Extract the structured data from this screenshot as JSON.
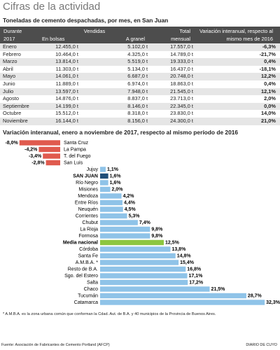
{
  "header": {
    "title": "Cifras de la actividad"
  },
  "table": {
    "title": "Toneladas de cemento despachadas, por mes, en San Juan",
    "columns": [
      "Durante 2017",
      "Vendidas",
      "Total mensual",
      "Variación interanual, respecto al mismo mes de 2016"
    ],
    "subcolumns": [
      "En bolsas",
      "A granel"
    ],
    "rows": [
      [
        "Enero",
        "12.455,0 t",
        "5.102,0 t",
        "17.557,0 t",
        "-6,3%"
      ],
      [
        "Febrero",
        "10.464,0 t",
        "4.325,0 t",
        "14.789,0 t",
        "-21,7%"
      ],
      [
        "Marzo",
        "13.814,0 t",
        "5.519,0 t",
        "19.333,0 t",
        "0,4%"
      ],
      [
        "Abril",
        "11.303,0 t",
        "5.134,0 t",
        "16.437,0 t",
        "-18,1%"
      ],
      [
        "Mayo",
        "14.061,0 t",
        "6.687,0 t",
        "20.748,0 t",
        "12,2%"
      ],
      [
        "Junio",
        "11.889,0 t",
        "6.974,0 t",
        "18.863,0 t",
        "0,4%"
      ],
      [
        "Julio",
        "13.597,0 t",
        "7.948,0 t",
        "21.545,0 t",
        "12,1%"
      ],
      [
        "Agosto",
        "14.876,0 t",
        "8.837,0 t",
        "23.713,0 t",
        "2,0%"
      ],
      [
        "Septiembre",
        "14.199,0 t",
        "8.146,0 t",
        "22.345,0 t",
        "0,0%"
      ],
      [
        "Octubre",
        "15.512,0 t",
        "8.318,0 t",
        "23.830,0 t",
        "14,0%"
      ],
      [
        "Noviembre",
        "16.144,0 t",
        "8.156,0 t",
        "24.300,0 t",
        "21,0%"
      ]
    ]
  },
  "chart_data": {
    "type": "bar",
    "title": "Variación interanual, enero a noviembre de 2017, respecto al mismo período de 2016",
    "categories": [
      "Santa Cruz",
      "La Pampa",
      "T. del Fuego",
      "San Luis",
      "Jujuy",
      "SAN JUAN",
      "Río Negro",
      "Misiones",
      "Mendoza",
      "Entre Ríos",
      "Neuquén",
      "Corrientes",
      "Chubut",
      "La Rioja",
      "Formosa",
      "Media nacional",
      "Córdoba",
      "Santa Fe",
      "A.M.B.A. *",
      "Resto de B.A.",
      "Sgo. del Estero",
      "Salta",
      "Chaco",
      "Tucumán",
      "Catamarca"
    ],
    "values": [
      -8.0,
      -4.2,
      -3.4,
      -2.8,
      1.1,
      1.6,
      1.6,
      2.0,
      4.2,
      4.4,
      4.5,
      5.3,
      7.4,
      9.8,
      9.8,
      12.5,
      13.8,
      14.8,
      15.4,
      16.8,
      17.1,
      17.2,
      21.5,
      28.7,
      32.3
    ],
    "value_labels": [
      "-8,0%",
      "-4,2%",
      "-3,4%",
      "-2,8%",
      "1,1%",
      "1,6%",
      "1,6%",
      "2,0%",
      "4,2%",
      "4,4%",
      "4,5%",
      "5,3%",
      "7,4%",
      "9,8%",
      "9,8%",
      "12,5%",
      "13,8%",
      "14,8%",
      "15,4%",
      "16,8%",
      "17,1%",
      "17,2%",
      "21,5%",
      "28,7%",
      "32,3%"
    ],
    "colors": [
      "#e05a4e",
      "#e05a4e",
      "#e05a4e",
      "#e05a4e",
      "#8fc3e8",
      "#1f4e79",
      "#8fc3e8",
      "#8fc3e8",
      "#8fc3e8",
      "#8fc3e8",
      "#8fc3e8",
      "#8fc3e8",
      "#8fc3e8",
      "#8fc3e8",
      "#8fc3e8",
      "#8dc63f",
      "#8fc3e8",
      "#8fc3e8",
      "#8fc3e8",
      "#8fc3e8",
      "#8fc3e8",
      "#8fc3e8",
      "#8fc3e8",
      "#8fc3e8",
      "#8fc3e8"
    ]
  },
  "footnote": "* A.M.B.A. es la zona urbana común que conforman la Cdad. Aut. de B.A. y 40 municipios de la Provincia de Buenos Aires.",
  "source": "Fuente: Asociación de Fabricantes de Cemento Portland (AFCP)",
  "credit": "DIARIO DE CUYO"
}
